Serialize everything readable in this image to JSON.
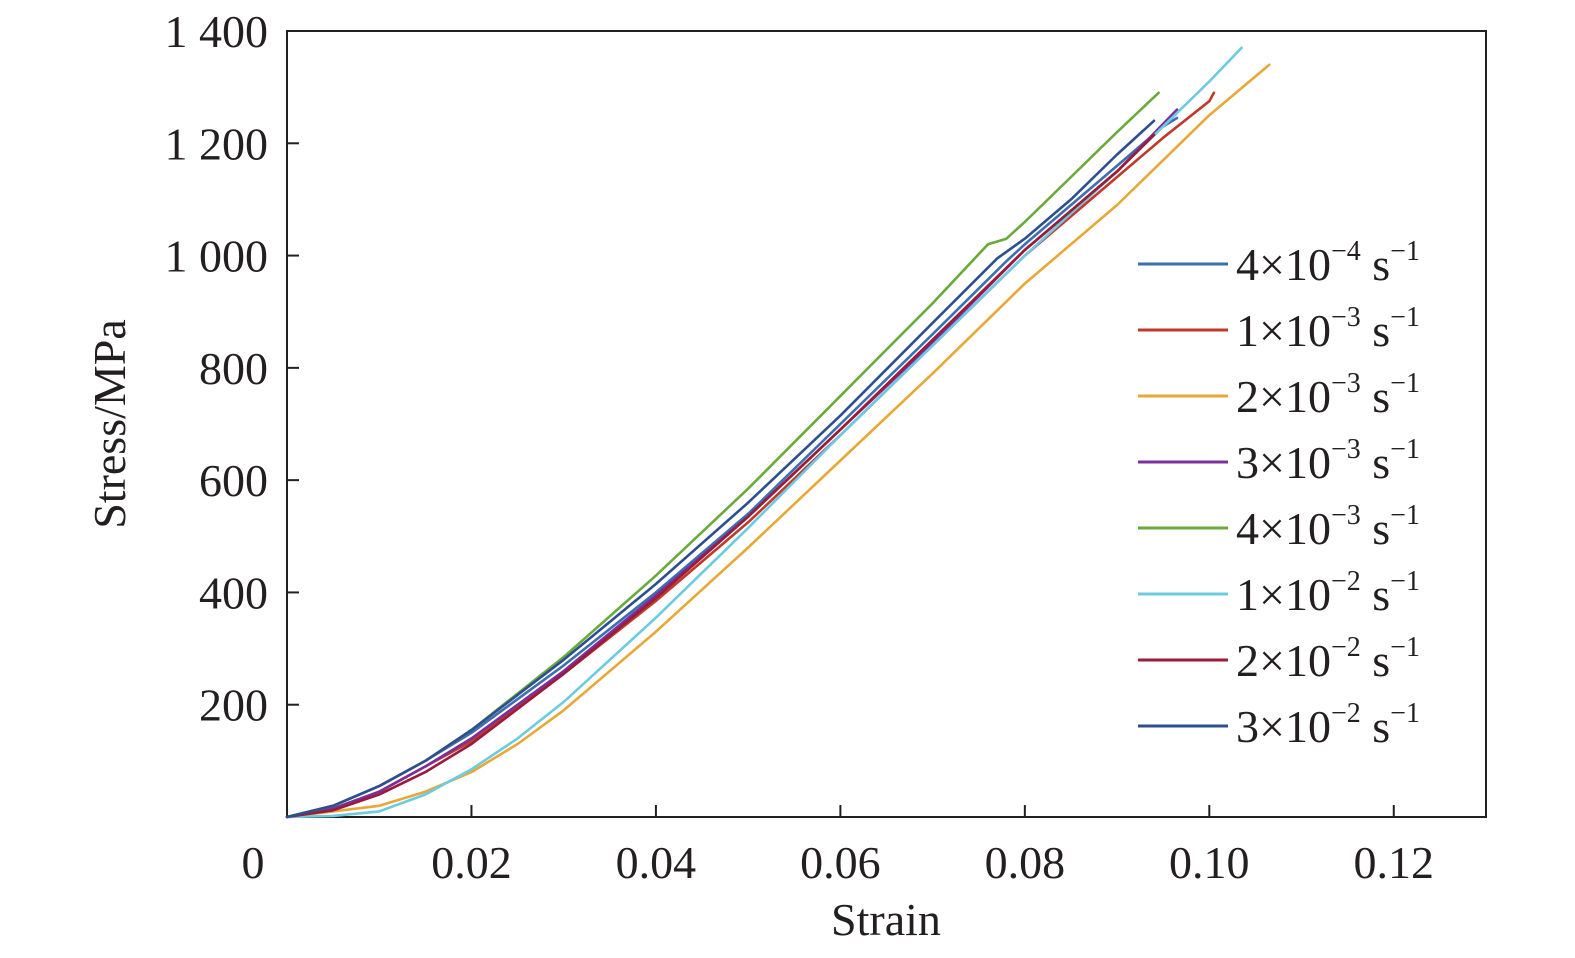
{
  "chart_data": {
    "type": "line",
    "title": "",
    "xlabel": "Strain",
    "ylabel": "Stress/MPa",
    "xlim": [
      0,
      0.13
    ],
    "ylim": [
      0,
      1400
    ],
    "x_ticks": [
      0,
      0.02,
      0.04,
      0.06,
      0.08,
      0.1,
      0.12
    ],
    "x_tick_labels": [
      "0",
      "0.02",
      "0.04",
      "0.06",
      "0.08",
      "0.10",
      "0.12"
    ],
    "y_ticks": [
      200,
      400,
      600,
      800,
      1000,
      1200,
      1400
    ],
    "y_tick_labels": [
      "200",
      "400",
      "600",
      "800",
      "1 000",
      "1 200",
      "1 400"
    ],
    "grid": false,
    "legend_position": "right",
    "series": [
      {
        "name": "4×10⁻⁴ s⁻¹",
        "coef": "4",
        "exp": "−4",
        "unit": "s",
        "unit_exp": "−1",
        "color": "#3b6fb0",
        "x": [
          0,
          0.005,
          0.01,
          0.015,
          0.02,
          0.03,
          0.04,
          0.05,
          0.06,
          0.07,
          0.078,
          0.08,
          0.085,
          0.09,
          0.095,
          0.0965
        ],
        "y": [
          0,
          20,
          55,
          100,
          150,
          270,
          400,
          540,
          700,
          860,
          990,
          1020,
          1090,
          1160,
          1230,
          1245
        ]
      },
      {
        "name": "1×10⁻³ s⁻¹",
        "coef": "1",
        "exp": "−3",
        "unit": "s",
        "unit_exp": "−1",
        "color": "#c0392b",
        "x": [
          0,
          0.005,
          0.01,
          0.015,
          0.02,
          0.03,
          0.04,
          0.05,
          0.06,
          0.07,
          0.08,
          0.085,
          0.09,
          0.095,
          0.1,
          0.1005
        ],
        "y": [
          0,
          15,
          45,
          90,
          135,
          255,
          385,
          525,
          680,
          840,
          1000,
          1070,
          1140,
          1210,
          1275,
          1290
        ]
      },
      {
        "name": "2×10⁻³ s⁻¹",
        "coef": "2",
        "exp": "−3",
        "unit": "s",
        "unit_exp": "−1",
        "color": "#e8a838",
        "x": [
          0,
          0.01,
          0.015,
          0.02,
          0.025,
          0.03,
          0.04,
          0.05,
          0.06,
          0.07,
          0.08,
          0.09,
          0.1,
          0.1065
        ],
        "y": [
          0,
          20,
          45,
          80,
          130,
          190,
          330,
          480,
          635,
          790,
          950,
          1090,
          1250,
          1340
        ]
      },
      {
        "name": "3×10⁻³ s⁻¹",
        "coef": "3",
        "exp": "−3",
        "unit": "s",
        "unit_exp": "−1",
        "color": "#7b2f9e",
        "x": [
          0,
          0.005,
          0.01,
          0.015,
          0.02,
          0.03,
          0.04,
          0.05,
          0.06,
          0.07,
          0.08,
          0.085,
          0.09,
          0.0965
        ],
        "y": [
          0,
          15,
          45,
          90,
          140,
          260,
          395,
          535,
          690,
          845,
          1010,
          1080,
          1150,
          1260
        ]
      },
      {
        "name": "4×10⁻³ s⁻¹",
        "coef": "4",
        "exp": "−3",
        "unit": "s",
        "unit_exp": "−1",
        "color": "#6aaa3a",
        "x": [
          0,
          0.005,
          0.01,
          0.015,
          0.02,
          0.03,
          0.04,
          0.05,
          0.06,
          0.07,
          0.076,
          0.078,
          0.08,
          0.085,
          0.09,
          0.0945
        ],
        "y": [
          0,
          20,
          55,
          100,
          155,
          285,
          430,
          585,
          750,
          915,
          1020,
          1030,
          1060,
          1140,
          1220,
          1290
        ]
      },
      {
        "name": "1×10⁻² s⁻¹",
        "coef": "1",
        "exp": "−2",
        "unit": "s",
        "unit_exp": "−1",
        "color": "#6ccbe0",
        "x": [
          0,
          0.005,
          0.01,
          0.015,
          0.02,
          0.025,
          0.03,
          0.04,
          0.05,
          0.06,
          0.07,
          0.08,
          0.09,
          0.095,
          0.1,
          0.1035
        ],
        "y": [
          0,
          2,
          10,
          40,
          85,
          140,
          205,
          355,
          515,
          680,
          840,
          1000,
          1150,
          1230,
          1310,
          1370
        ]
      },
      {
        "name": "2×10⁻² s⁻¹",
        "coef": "2",
        "exp": "−2",
        "unit": "s",
        "unit_exp": "−1",
        "color": "#9b1b3a",
        "x": [
          0,
          0.005,
          0.01,
          0.015,
          0.02,
          0.03,
          0.04,
          0.05,
          0.06,
          0.07,
          0.08,
          0.085,
          0.09,
          0.094
        ],
        "y": [
          0,
          12,
          40,
          80,
          130,
          255,
          390,
          535,
          690,
          850,
          1010,
          1080,
          1150,
          1215
        ]
      },
      {
        "name": "3×10⁻² s⁻¹",
        "coef": "3",
        "exp": "−2",
        "unit": "s",
        "unit_exp": "−1",
        "color": "#2e4f8f",
        "x": [
          0,
          0.005,
          0.01,
          0.015,
          0.02,
          0.03,
          0.04,
          0.05,
          0.06,
          0.07,
          0.077,
          0.08,
          0.085,
          0.09,
          0.094
        ],
        "y": [
          0,
          20,
          55,
          100,
          155,
          280,
          415,
          560,
          715,
          880,
          995,
          1030,
          1100,
          1180,
          1240
        ]
      }
    ]
  }
}
